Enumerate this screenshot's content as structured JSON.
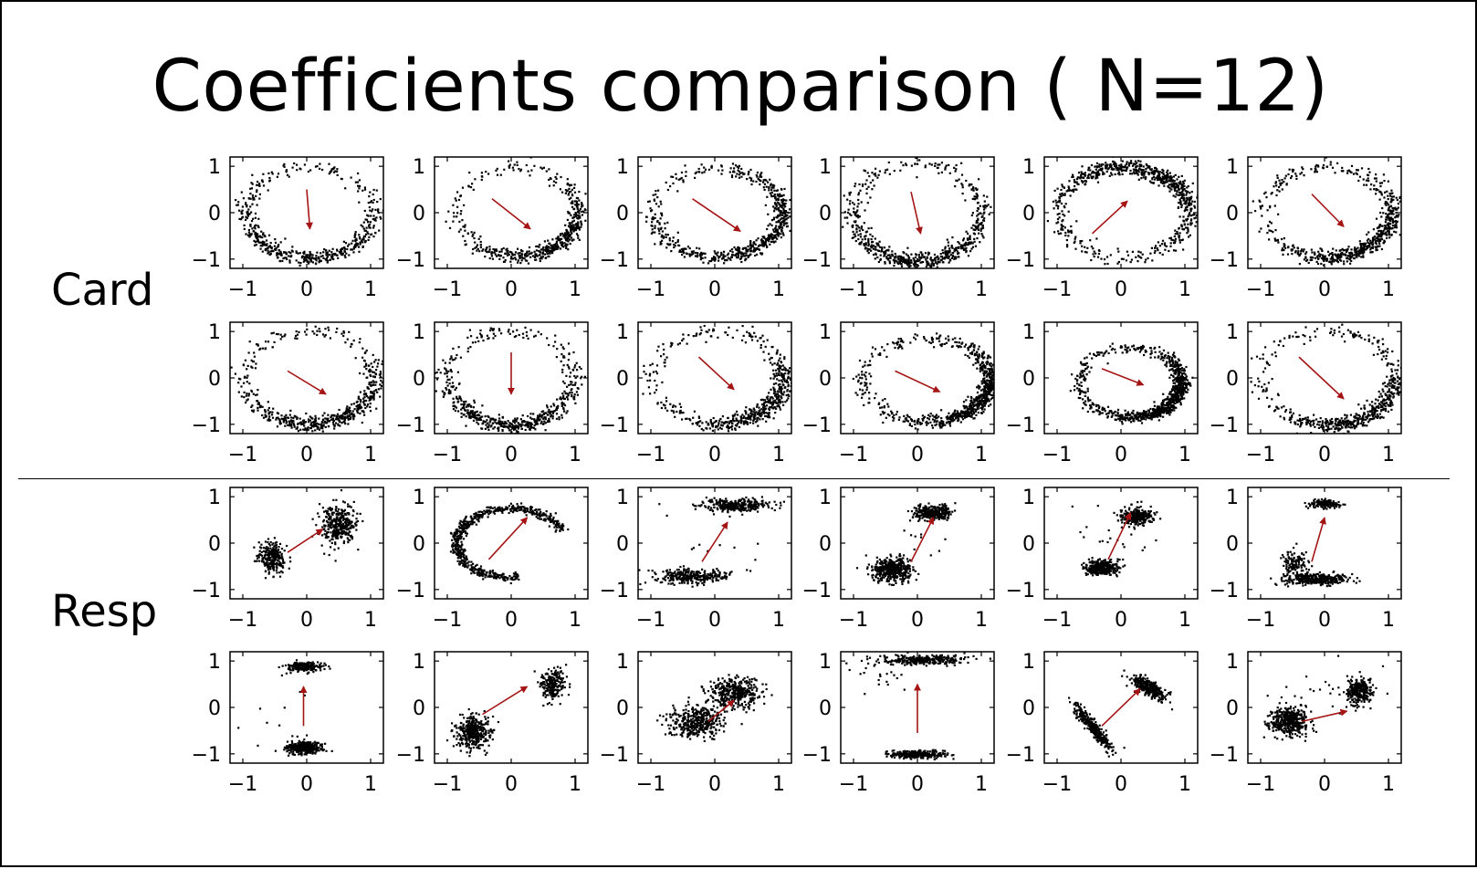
{
  "title": "Coefficients comparison ( N=12)",
  "groups": [
    {
      "label": "Card"
    },
    {
      "label": "Resp"
    }
  ],
  "colors": {
    "points": "#000000",
    "arrow": "#a51414",
    "frame": "#000000"
  },
  "chart_data": {
    "type": "scatter",
    "title": "Coefficients comparison ( N=12)",
    "layout": "4 rows x 6 columns of small scatter panels; rows 1-2 = Card, rows 3-4 = Resp",
    "xlim": [
      -1.2,
      1.2
    ],
    "ylim": [
      -1.2,
      1.2
    ],
    "xticks": [
      -1,
      0,
      1
    ],
    "yticks": [
      -1,
      0,
      1
    ],
    "xtick_labels": [
      "−1",
      "0",
      "1"
    ],
    "ytick_labels": [
      "−1",
      "0",
      "1"
    ],
    "grid": false,
    "panels": [
      {
        "group": "Card",
        "cluster": "ring",
        "arrow": {
          "from": [
            0.0,
            0.5
          ],
          "to": [
            0.05,
            -0.35
          ]
        },
        "params": {
          "cx": 0.05,
          "cy": 0.0,
          "rx": 1.0,
          "ry": 0.98,
          "focus": -1.57,
          "k": 1.2,
          "n": 520
        }
      },
      {
        "group": "Card",
        "cluster": "ring",
        "arrow": {
          "from": [
            -0.3,
            0.3
          ],
          "to": [
            0.3,
            -0.35
          ]
        },
        "params": {
          "cx": 0.1,
          "cy": 0.0,
          "rx": 0.95,
          "ry": 0.95,
          "focus": -0.9,
          "k": 2.0,
          "n": 520
        }
      },
      {
        "group": "Card",
        "cluster": "ring",
        "arrow": {
          "from": [
            -0.35,
            0.3
          ],
          "to": [
            0.4,
            -0.4
          ]
        },
        "params": {
          "cx": 0.05,
          "cy": 0.0,
          "rx": 1.02,
          "ry": 0.95,
          "focus": -0.6,
          "k": 1.2,
          "n": 620
        }
      },
      {
        "group": "Card",
        "cluster": "ring",
        "arrow": {
          "from": [
            -0.1,
            0.45
          ],
          "to": [
            0.05,
            -0.45
          ]
        },
        "params": {
          "cx": 0.0,
          "cy": 0.0,
          "rx": 1.0,
          "ry": 1.05,
          "focus": -1.5,
          "k": 1.5,
          "n": 620
        }
      },
      {
        "group": "Card",
        "cluster": "ring",
        "arrow": {
          "from": [
            -0.45,
            -0.45
          ],
          "to": [
            0.1,
            0.25
          ]
        },
        "params": {
          "cx": 0.05,
          "cy": 0.0,
          "rx": 1.02,
          "ry": 0.98,
          "focus": 1.0,
          "k": 1.3,
          "n": 720
        }
      },
      {
        "group": "Card",
        "cluster": "ring",
        "arrow": {
          "from": [
            -0.2,
            0.4
          ],
          "to": [
            0.3,
            -0.3
          ]
        },
        "params": {
          "cx": 0.05,
          "cy": 0.0,
          "rx": 1.0,
          "ry": 0.97,
          "focus": -0.8,
          "k": 1.7,
          "n": 620
        }
      },
      {
        "group": "Card",
        "cluster": "ring",
        "arrow": {
          "from": [
            -0.3,
            0.15
          ],
          "to": [
            0.3,
            -0.35
          ]
        },
        "params": {
          "cx": 0.05,
          "cy": 0.0,
          "rx": 1.02,
          "ry": 1.0,
          "focus": -1.0,
          "k": 2.2,
          "n": 560
        }
      },
      {
        "group": "Card",
        "cluster": "ring",
        "arrow": {
          "from": [
            0.0,
            0.55
          ],
          "to": [
            0.0,
            -0.35
          ]
        },
        "params": {
          "cx": 0.0,
          "cy": 0.0,
          "rx": 1.0,
          "ry": 1.02,
          "focus": -1.57,
          "k": 1.5,
          "n": 560
        }
      },
      {
        "group": "Card",
        "cluster": "ring",
        "arrow": {
          "from": [
            -0.25,
            0.45
          ],
          "to": [
            0.3,
            -0.25
          ]
        },
        "params": {
          "cx": 0.05,
          "cy": 0.0,
          "rx": 1.02,
          "ry": 1.0,
          "focus": -0.7,
          "k": 2.4,
          "n": 560
        }
      },
      {
        "group": "Card",
        "cluster": "ring",
        "arrow": {
          "from": [
            -0.35,
            0.15
          ],
          "to": [
            0.35,
            -0.3
          ]
        },
        "params": {
          "cx": 0.15,
          "cy": -0.05,
          "rx": 1.0,
          "ry": 0.9,
          "focus": -0.5,
          "k": 2.6,
          "n": 780
        }
      },
      {
        "group": "Card",
        "cluster": "ring",
        "arrow": {
          "from": [
            -0.3,
            0.2
          ],
          "to": [
            0.35,
            -0.15
          ]
        },
        "params": {
          "cx": 0.15,
          "cy": -0.1,
          "rx": 0.8,
          "ry": 0.75,
          "focus": -0.6,
          "k": 2.2,
          "n": 900
        }
      },
      {
        "group": "Card",
        "cluster": "ring",
        "arrow": {
          "from": [
            -0.4,
            0.45
          ],
          "to": [
            0.3,
            -0.45
          ]
        },
        "params": {
          "cx": 0.05,
          "cy": 0.0,
          "rx": 1.05,
          "ry": 1.02,
          "focus": -0.9,
          "k": 2.5,
          "n": 560
        }
      },
      {
        "group": "Resp",
        "cluster": "blobs",
        "arrow": {
          "from": [
            -0.3,
            -0.2
          ],
          "to": [
            0.25,
            0.3
          ]
        },
        "params": {
          "blobs": [
            [
              -0.55,
              -0.3,
              0.1,
              0.17,
              260
            ],
            [
              0.5,
              0.4,
              0.15,
              0.22,
              340
            ]
          ],
          "n": 0
        }
      },
      {
        "group": "Resp",
        "cluster": "arc",
        "arrow": {
          "from": [
            -0.35,
            -0.35
          ],
          "to": [
            0.25,
            0.55
          ]
        },
        "params": {
          "cx": 0.0,
          "cy": 0.0,
          "rx": 0.85,
          "ry": 0.75,
          "a0": 0.35,
          "a1": 4.85,
          "w": 0.06,
          "n": 620
        }
      },
      {
        "group": "Resp",
        "cluster": "blobs",
        "arrow": {
          "from": [
            -0.2,
            -0.4
          ],
          "to": [
            0.2,
            0.45
          ]
        },
        "params": {
          "blobs": [
            [
              0.35,
              0.82,
              0.24,
              0.07,
              300
            ],
            [
              -0.35,
              -0.72,
              0.28,
              0.08,
              300
            ],
            [
              0.0,
              -0.1,
              0.5,
              0.6,
              12
            ]
          ],
          "n": 0
        }
      },
      {
        "group": "Resp",
        "cluster": "blobs",
        "arrow": {
          "from": [
            -0.1,
            -0.4
          ],
          "to": [
            0.25,
            0.55
          ]
        },
        "params": {
          "blobs": [
            [
              -0.4,
              -0.58,
              0.15,
              0.12,
              420
            ],
            [
              0.25,
              0.65,
              0.15,
              0.08,
              320
            ],
            [
              0.0,
              0.0,
              0.4,
              0.5,
              10
            ]
          ],
          "n": 0
        }
      },
      {
        "group": "Resp",
        "cluster": "blobs",
        "arrow": {
          "from": [
            -0.2,
            -0.35
          ],
          "to": [
            0.15,
            0.65
          ]
        },
        "params": {
          "blobs": [
            [
              -0.3,
              -0.52,
              0.12,
              0.08,
              380
            ],
            [
              0.25,
              0.58,
              0.12,
              0.09,
              280
            ],
            [
              -0.3,
              0.0,
              0.35,
              0.4,
              20
            ]
          ],
          "n": 0
        }
      },
      {
        "group": "Resp",
        "cluster": "blobs",
        "arrow": {
          "from": [
            -0.2,
            -0.4
          ],
          "to": [
            0.0,
            0.55
          ]
        },
        "params": {
          "blobs": [
            [
              -0.12,
              -0.78,
              0.25,
              0.06,
              360
            ],
            [
              0.0,
              0.85,
              0.12,
              0.05,
              130
            ],
            [
              -0.45,
              -0.45,
              0.1,
              0.15,
              120
            ]
          ],
          "n": 0
        }
      },
      {
        "group": "Resp",
        "cluster": "blobs",
        "arrow": {
          "from": [
            -0.05,
            -0.4
          ],
          "to": [
            -0.05,
            0.45
          ]
        },
        "params": {
          "blobs": [
            [
              -0.05,
              -0.88,
              0.14,
              0.06,
              380
            ],
            [
              -0.02,
              0.88,
              0.14,
              0.05,
              200
            ],
            [
              -0.3,
              -0.3,
              0.3,
              0.5,
              12
            ]
          ],
          "n": 0
        }
      },
      {
        "group": "Resp",
        "cluster": "blobs",
        "arrow": {
          "from": [
            -0.45,
            -0.15
          ],
          "to": [
            0.25,
            0.45
          ]
        },
        "params": {
          "blobs": [
            [
              -0.6,
              -0.55,
              0.14,
              0.18,
              360
            ],
            [
              0.65,
              0.5,
              0.1,
              0.15,
              220
            ]
          ],
          "n": 0
        }
      },
      {
        "group": "Resp",
        "cluster": "blobs",
        "arrow": {
          "from": [
            -0.1,
            -0.3
          ],
          "to": [
            0.3,
            0.15
          ]
        },
        "params": {
          "blobs": [
            [
              -0.3,
              -0.3,
              0.22,
              0.18,
              380
            ],
            [
              0.3,
              0.3,
              0.2,
              0.16,
              380
            ]
          ],
          "n": 0
        }
      },
      {
        "group": "Resp",
        "cluster": "blobs",
        "arrow": {
          "from": [
            0.0,
            -0.55
          ],
          "to": [
            0.0,
            0.5
          ]
        },
        "params": {
          "blobs": [
            [
              0.05,
              1.02,
              0.35,
              0.05,
              300
            ],
            [
              -0.02,
              -1.02,
              0.25,
              0.04,
              260
            ],
            [
              -0.6,
              0.7,
              0.25,
              0.2,
              18
            ]
          ],
          "n": 0
        }
      },
      {
        "group": "Resp",
        "cluster": "diagonal",
        "arrow": {
          "from": [
            -0.3,
            -0.4
          ],
          "to": [
            0.3,
            0.4
          ]
        },
        "params": {
          "blobs": [
            [
              -0.45,
              -0.42,
              0.2,
              0.08,
              320
            ],
            [
              0.45,
              0.42,
              0.2,
              0.08,
              300
            ]
          ],
          "angle": 0.75,
          "n": 0
        }
      },
      {
        "group": "Resp",
        "cluster": "blobs",
        "arrow": {
          "from": [
            -0.35,
            -0.3
          ],
          "to": [
            0.35,
            -0.08
          ]
        },
        "params": {
          "blobs": [
            [
              -0.55,
              -0.3,
              0.14,
              0.14,
              440
            ],
            [
              0.55,
              0.35,
              0.1,
              0.14,
              260
            ],
            [
              0.0,
              0.3,
              0.5,
              0.4,
              25
            ]
          ],
          "n": 0
        }
      }
    ]
  }
}
